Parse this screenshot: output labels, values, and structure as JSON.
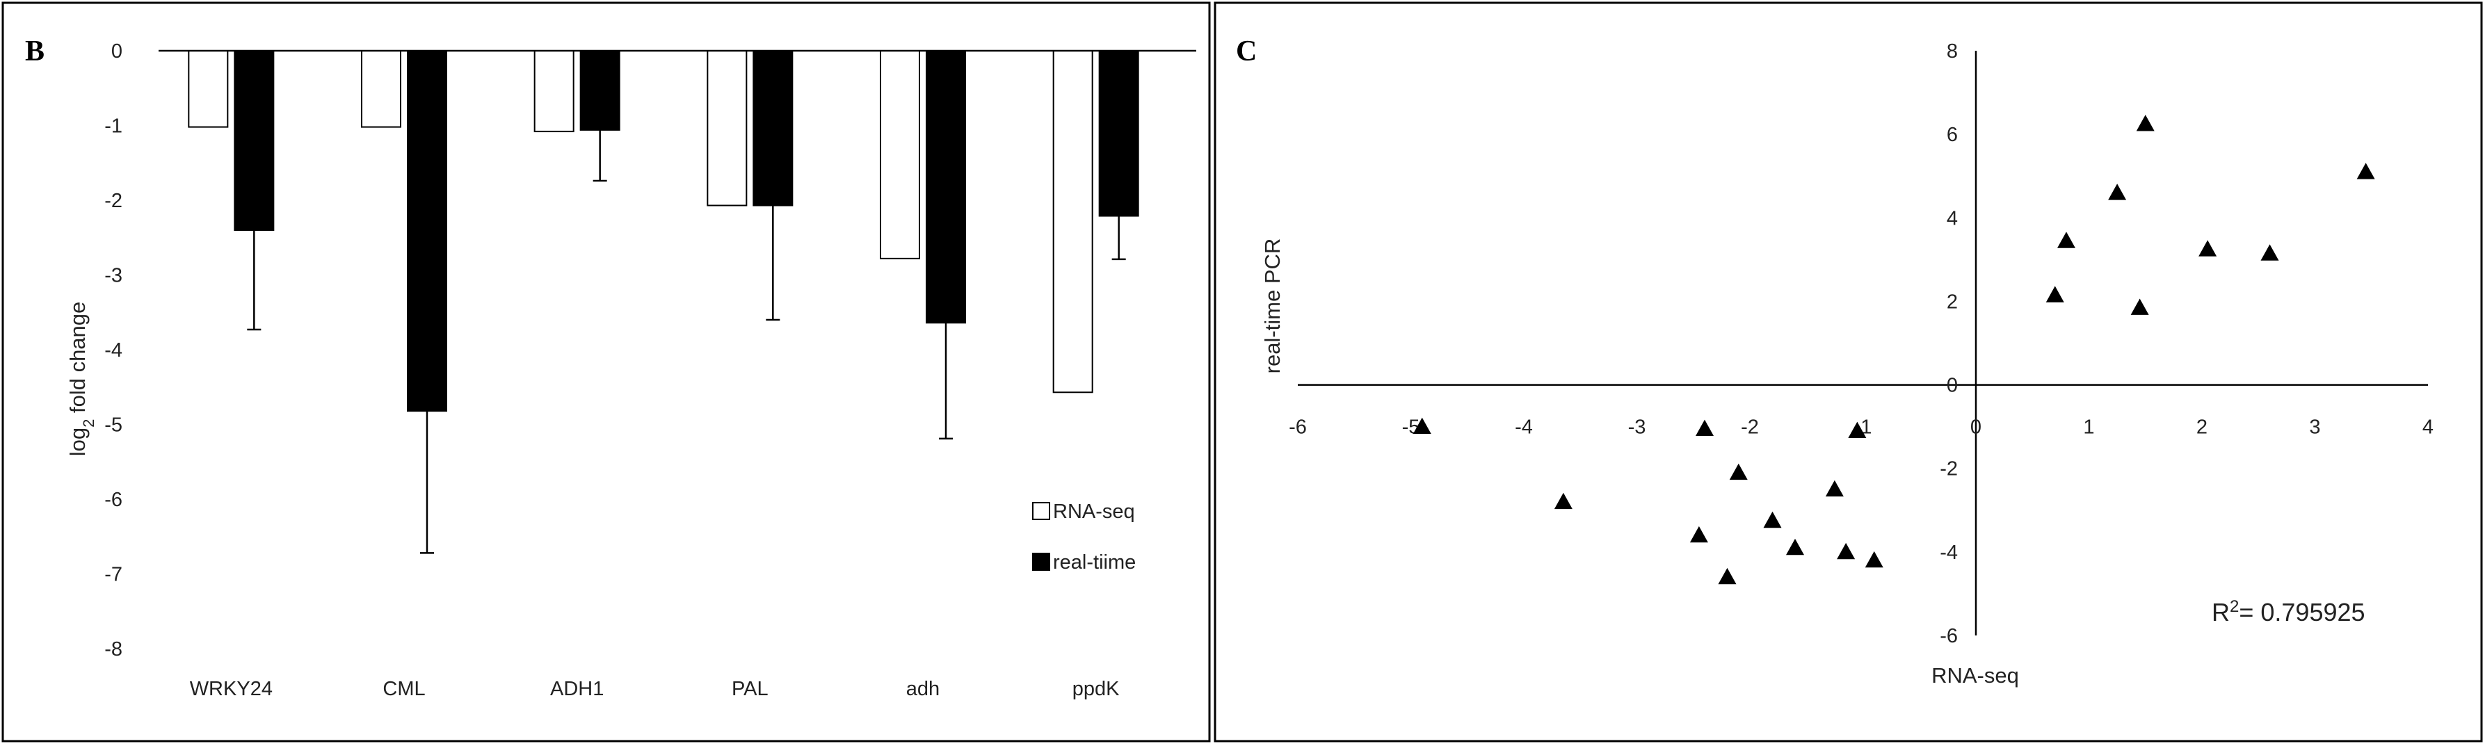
{
  "chart_data": [
    {
      "panel": "B",
      "type": "bar",
      "ylabel_prefix": "log",
      "ylabel_sub": "2",
      "ylabel_suffix": " fold change",
      "ylim": [
        -8,
        0
      ],
      "yticks": [
        0,
        -1,
        -2,
        -3,
        -4,
        -5,
        -6,
        -7,
        -8
      ],
      "categories": [
        "WRKY24",
        "CML",
        "ADH1",
        "PAL",
        "adh",
        "ppdK"
      ],
      "series": [
        {
          "name": "RNA-seq",
          "color": "#ffffff",
          "values": [
            -1.02,
            -1.02,
            -1.08,
            -2.07,
            -2.78,
            -4.57
          ],
          "errors": [
            0,
            0,
            0,
            0,
            0,
            0
          ]
        },
        {
          "name": "real-tiime",
          "color": "#000000",
          "values": [
            -2.4,
            -4.82,
            -1.06,
            -2.07,
            -3.64,
            -2.21
          ],
          "errors": [
            1.33,
            1.9,
            0.68,
            1.53,
            1.55,
            0.58
          ]
        }
      ],
      "legend_position": "bottom-right",
      "grid": false
    },
    {
      "panel": "C",
      "type": "scatter",
      "xlabel": "RNA-seq",
      "ylabel": "real-time PCR",
      "xlim": [
        -6,
        4
      ],
      "ylim": [
        -6,
        8
      ],
      "xticks": [
        -6,
        -5,
        -4,
        -3,
        -2,
        -1,
        0,
        1,
        2,
        3,
        4
      ],
      "yticks": [
        8,
        6,
        4,
        2,
        0,
        -2,
        -4,
        -6
      ],
      "marker": "triangle",
      "points": [
        [
          -4.9,
          -1.0
        ],
        [
          -3.65,
          -2.8
        ],
        [
          -2.45,
          -3.6
        ],
        [
          -2.4,
          -1.05
        ],
        [
          -2.2,
          -4.6
        ],
        [
          -2.1,
          -2.1
        ],
        [
          -1.8,
          -3.25
        ],
        [
          -1.6,
          -3.9
        ],
        [
          -1.25,
          -2.5
        ],
        [
          -1.15,
          -4.0
        ],
        [
          -1.05,
          -1.1
        ],
        [
          -0.9,
          -4.2
        ],
        [
          0.7,
          2.15
        ],
        [
          0.8,
          3.45
        ],
        [
          1.25,
          4.6
        ],
        [
          1.45,
          1.85
        ],
        [
          1.5,
          6.25
        ],
        [
          2.05,
          3.25
        ],
        [
          2.6,
          3.15
        ],
        [
          3.45,
          5.1
        ]
      ],
      "annotation_prefix": "R",
      "annotation_sup": "2",
      "annotation_suffix": "= 0.795925",
      "grid": false
    }
  ]
}
